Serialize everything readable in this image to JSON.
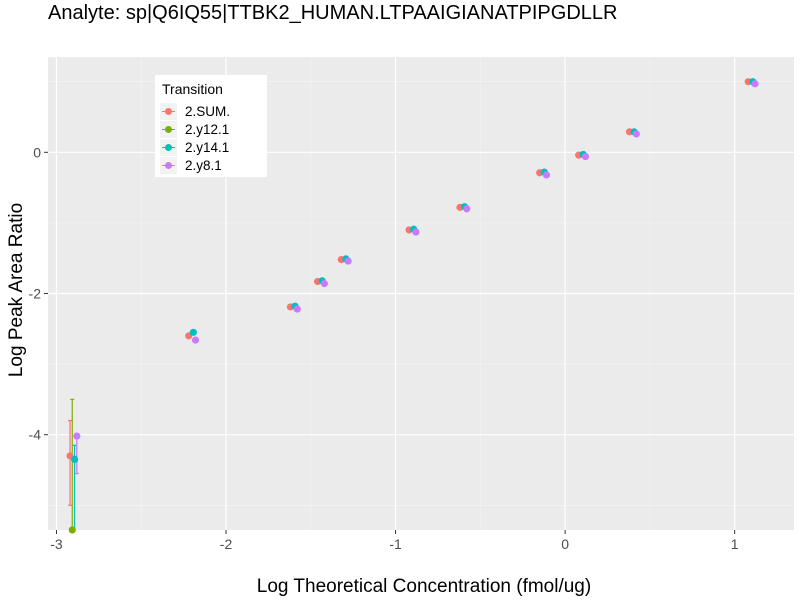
{
  "chart_data": {
    "type": "scatter",
    "title": "Analyte: sp|Q6IQ55|TTBK2_HUMAN.LTPAAIGIANATPIPGDLLR",
    "xlabel": "Log Theoretical Concentration (fmol/ug)",
    "ylabel": "Log Peak Area Ratio",
    "xlim": [
      -3.05,
      1.35
    ],
    "ylim": [
      -5.35,
      1.35
    ],
    "x_ticks": [
      -3,
      -2,
      -1,
      0,
      1
    ],
    "y_ticks": [
      -4,
      -2,
      0
    ],
    "x_tick_labels": [
      "-3",
      "-2",
      "-1",
      "0",
      "1"
    ],
    "y_tick_labels": [
      "-4",
      "-2",
      "0"
    ],
    "legend": {
      "title": "Transition",
      "position": "top-left"
    },
    "series": [
      {
        "name": "2.SUM.",
        "color": "#F8766D",
        "dodge": -0.02,
        "x": [
          -2.9,
          -2.2,
          -1.6,
          -1.44,
          -1.3,
          -0.9,
          -0.6,
          -0.13,
          0.1,
          0.4,
          1.1
        ],
        "y": [
          -4.3,
          -2.6,
          -2.19,
          -1.83,
          -1.52,
          -1.1,
          -0.78,
          -0.29,
          -0.04,
          0.29,
          1.0
        ],
        "err_lo": [
          -5.0,
          null,
          null,
          null,
          null,
          null,
          null,
          null,
          null,
          null,
          null
        ],
        "err_hi": [
          -3.8,
          null,
          null,
          null,
          null,
          null,
          null,
          null,
          null,
          null,
          null
        ]
      },
      {
        "name": "2.y12.1",
        "color": "#7CAE00",
        "dodge": -0.007,
        "x": [
          -2.9
        ],
        "y": [
          -5.35
        ],
        "err_lo": [
          -5.35
        ],
        "err_hi": [
          -3.5
        ]
      },
      {
        "name": "2.y14.1",
        "color": "#00BFC4",
        "dodge": 0.007,
        "x": [
          -2.9,
          -2.2,
          -1.6,
          -1.44,
          -1.3,
          -0.9,
          -0.6,
          -0.13,
          0.1,
          0.4,
          1.1
        ],
        "y": [
          -4.35,
          -2.55,
          -2.18,
          -1.82,
          -1.51,
          -1.09,
          -0.77,
          -0.28,
          -0.03,
          0.29,
          1.0
        ],
        "err_lo": [
          -5.35,
          null,
          null,
          null,
          null,
          null,
          null,
          null,
          null,
          null,
          null
        ],
        "err_hi": [
          -4.15,
          null,
          null,
          null,
          null,
          null,
          null,
          null,
          null,
          null,
          null
        ]
      },
      {
        "name": "2.y8.1",
        "color": "#C77CFF",
        "dodge": 0.02,
        "x": [
          -2.9,
          -2.2,
          -1.6,
          -1.44,
          -1.3,
          -0.9,
          -0.6,
          -0.13,
          0.1,
          0.4,
          1.1
        ],
        "y": [
          -4.02,
          -2.66,
          -2.22,
          -1.86,
          -1.54,
          -1.13,
          -0.8,
          -0.32,
          -0.06,
          0.26,
          0.97
        ],
        "err_lo": [
          -4.55,
          null,
          null,
          null,
          null,
          null,
          null,
          null,
          null,
          null,
          null
        ],
        "err_hi": [
          null,
          null,
          null,
          null,
          null,
          null,
          null,
          null,
          null,
          null,
          null
        ]
      }
    ]
  }
}
